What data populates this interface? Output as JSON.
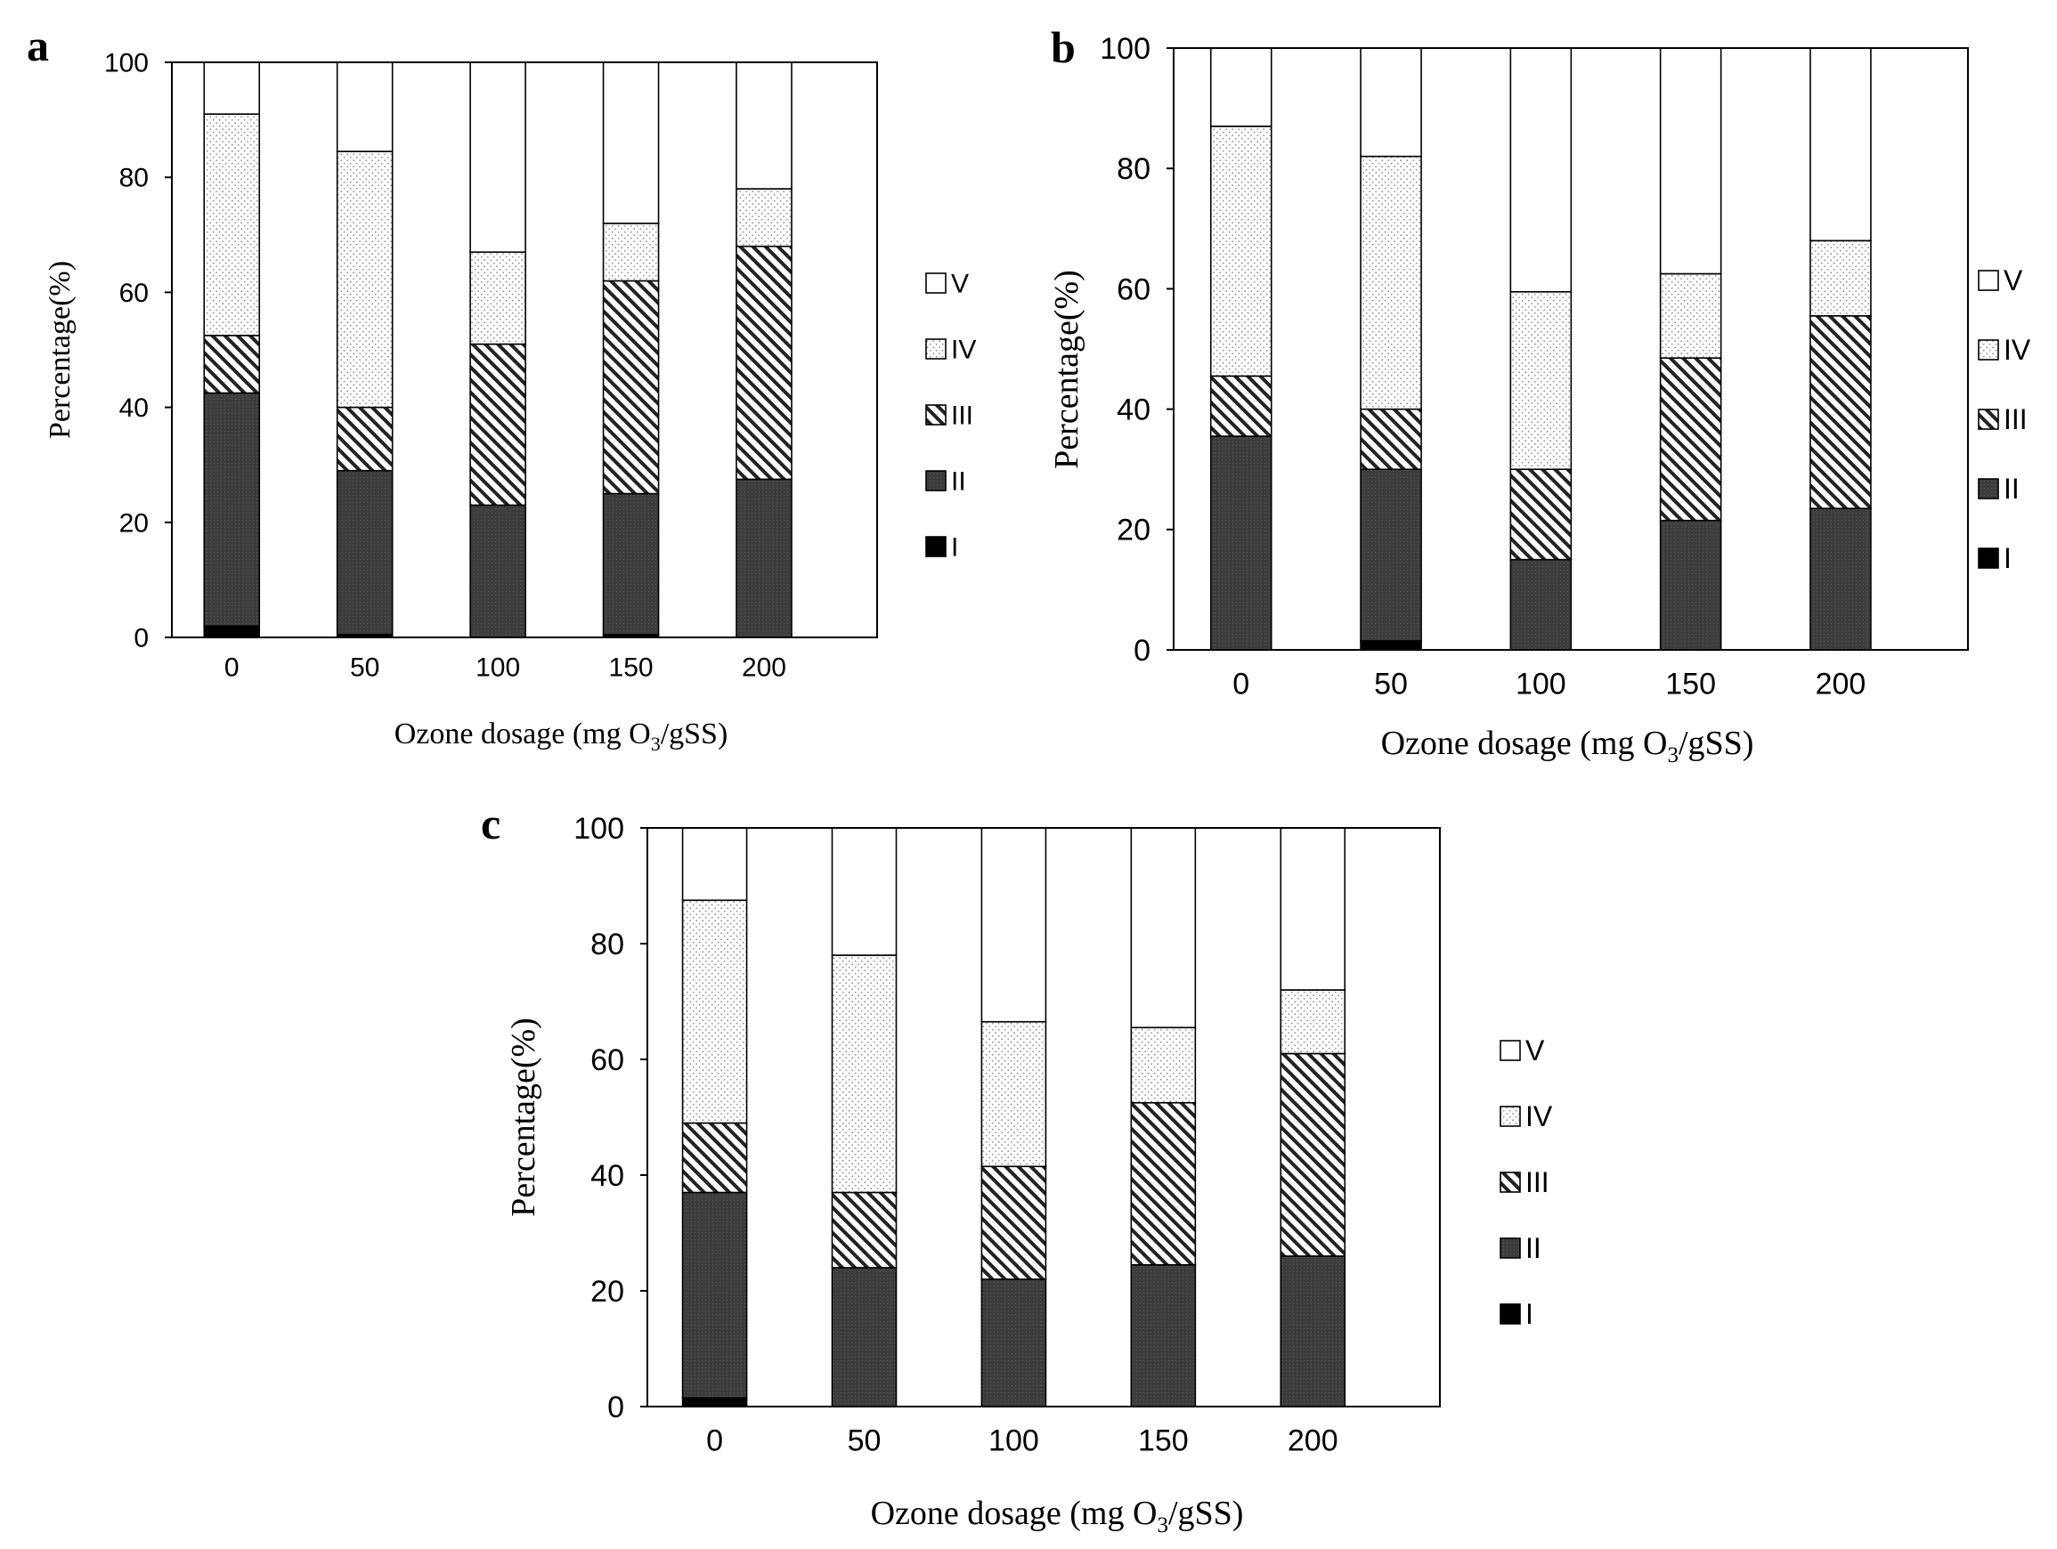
{
  "figure": {
    "x_label_prefix": "Ozone dosage (mg O",
    "x_label_sub": "3",
    "x_label_suffix": "/gSS)",
    "y_label": "Percentage(%)"
  },
  "colors": {
    "I": "#000000",
    "II": "#3d3d3d",
    "III_line": "#222222",
    "IV_dots": "#9a9a9a",
    "V": "#ffffff",
    "axis": "#000000",
    "text": "#000000"
  },
  "legend": [
    {
      "key": "V",
      "label": "V"
    },
    {
      "key": "IV",
      "label": "IV"
    },
    {
      "key": "III",
      "label": "III"
    },
    {
      "key": "II",
      "label": "II"
    },
    {
      "key": "I",
      "label": "I"
    }
  ],
  "chart_data": [
    {
      "panel": "a",
      "type": "bar",
      "stacked": true,
      "categories": [
        "0",
        "50",
        "100",
        "150",
        "200"
      ],
      "ylim": [
        0,
        100
      ],
      "yticks": [
        "0",
        "20",
        "40",
        "60",
        "80",
        "100"
      ],
      "xlabel": "Ozone dosage (mg O3/gSS)",
      "ylabel": "Percentage(%)",
      "series": [
        {
          "name": "I",
          "values": [
            2,
            0.5,
            0,
            0.5,
            0
          ]
        },
        {
          "name": "II",
          "values": [
            40.5,
            28.5,
            23,
            24.5,
            27.5
          ]
        },
        {
          "name": "III",
          "values": [
            10,
            11,
            28,
            37,
            40.5
          ]
        },
        {
          "name": "IV",
          "values": [
            38.5,
            44.5,
            16,
            10,
            10
          ]
        },
        {
          "name": "V",
          "values": [
            9,
            15.5,
            33,
            28,
            22
          ]
        }
      ]
    },
    {
      "panel": "b",
      "type": "bar",
      "stacked": true,
      "categories": [
        "0",
        "50",
        "100",
        "150",
        "200"
      ],
      "ylim": [
        0,
        100
      ],
      "yticks": [
        "0",
        "20",
        "40",
        "60",
        "80",
        "100"
      ],
      "xlabel": "Ozone dosage (mg O3/gSS)",
      "ylabel": "Percentage(%)",
      "series": [
        {
          "name": "I",
          "values": [
            0,
            1.5,
            0,
            0,
            0
          ]
        },
        {
          "name": "II",
          "values": [
            35.5,
            28.5,
            15,
            21.5,
            23.5
          ]
        },
        {
          "name": "III",
          "values": [
            10,
            10,
            15,
            27,
            32
          ]
        },
        {
          "name": "IV",
          "values": [
            41.5,
            42,
            29.5,
            14,
            12.5
          ]
        },
        {
          "name": "V",
          "values": [
            13,
            18,
            40.5,
            37.5,
            32
          ]
        }
      ]
    },
    {
      "panel": "c",
      "type": "bar",
      "stacked": true,
      "categories": [
        "0",
        "50",
        "100",
        "150",
        "200"
      ],
      "ylim": [
        0,
        100
      ],
      "yticks": [
        "0",
        "20",
        "40",
        "60",
        "80",
        "100"
      ],
      "xlabel": "Ozone dosage (mg O3/gSS)",
      "ylabel": "Percentage(%)",
      "series": [
        {
          "name": "I",
          "values": [
            1.5,
            0,
            0,
            0,
            0
          ]
        },
        {
          "name": "II",
          "values": [
            35.5,
            24,
            22,
            24.5,
            26
          ]
        },
        {
          "name": "III",
          "values": [
            12,
            13,
            19.5,
            28,
            35
          ]
        },
        {
          "name": "IV",
          "values": [
            38.5,
            41,
            25,
            13,
            11
          ]
        },
        {
          "name": "V",
          "values": [
            12.5,
            22,
            33.5,
            34.5,
            28
          ]
        }
      ]
    }
  ]
}
